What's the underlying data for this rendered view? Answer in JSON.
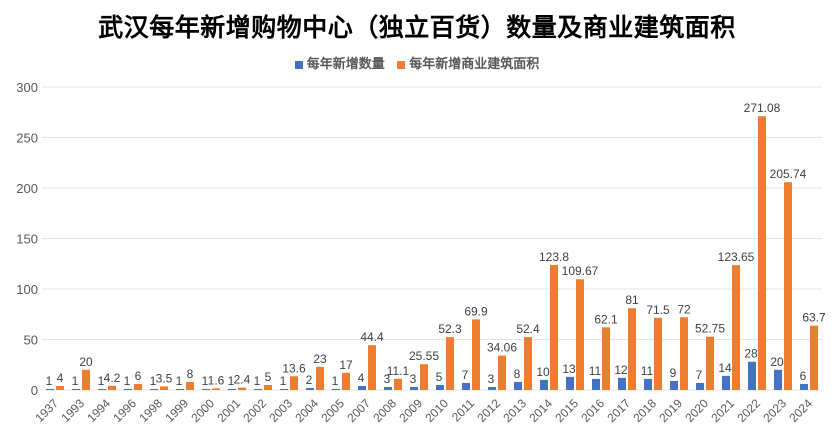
{
  "chart_data": {
    "type": "bar",
    "title": "武汉每年新增购物中心（独立百货）数量及商业建筑面积",
    "xlabel": "",
    "ylabel": "",
    "ylim": [
      0,
      300
    ],
    "yticks": [
      0,
      50,
      100,
      150,
      200,
      250,
      300
    ],
    "grid": true,
    "legend_position": "top",
    "categories": [
      "1937",
      "1993",
      "1994",
      "1996",
      "1998",
      "1999",
      "2000",
      "2001",
      "2002",
      "2003",
      "2004",
      "2005",
      "2007",
      "2008",
      "2009",
      "2010",
      "2011",
      "2012",
      "2013",
      "2014",
      "2015",
      "2016",
      "2017",
      "2018",
      "2019",
      "2020",
      "2021",
      "2022",
      "2023",
      "2024"
    ],
    "series": [
      {
        "name": "每年新增数量",
        "color": "#4472C4",
        "values": [
          1,
          1,
          1,
          1,
          1,
          1,
          1,
          1,
          1,
          1,
          2,
          1,
          4,
          3,
          3,
          5,
          7,
          3,
          8,
          10,
          13,
          11,
          12,
          11,
          9,
          7,
          14,
          28,
          20,
          6
        ]
      },
      {
        "name": "每年新增商业建筑面积",
        "color": "#ED7D31",
        "values": [
          4,
          20,
          4.2,
          6,
          3.5,
          8,
          1.6,
          2.4,
          5,
          13.6,
          23,
          17,
          44.4,
          11.1,
          25.55,
          52.3,
          69.9,
          34.06,
          52.4,
          123.8,
          109.67,
          62.1,
          81,
          71.5,
          72,
          52.75,
          123.65,
          271.08,
          205.74,
          63.7
        ]
      }
    ]
  }
}
